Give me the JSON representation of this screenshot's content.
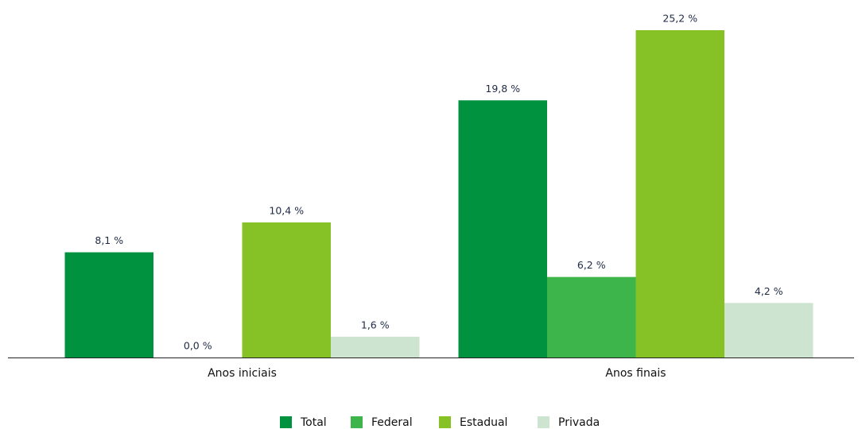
{
  "chart_data": {
    "type": "bar",
    "categories": [
      "Anos iniciais",
      "Anos finais"
    ],
    "series": [
      {
        "name": "Total",
        "color": "#00923f",
        "values": [
          8.1,
          19.8
        ],
        "value_labels": [
          "8,1 %",
          "19,8 %"
        ]
      },
      {
        "name": "Federal",
        "color": "#3db54a",
        "values": [
          0.0,
          6.2
        ],
        "value_labels": [
          "0,0 %",
          "6,2 %"
        ]
      },
      {
        "name": "Estadual",
        "color": "#86c226",
        "values": [
          10.4,
          25.2
        ],
        "value_labels": [
          "10,4 %",
          "25,2 %"
        ]
      },
      {
        "name": "Privada",
        "color": "#cde4d1",
        "values": [
          1.6,
          4.2
        ],
        "value_labels": [
          "1,6 %",
          "4,2 %"
        ]
      }
    ],
    "legend": "bottom"
  }
}
